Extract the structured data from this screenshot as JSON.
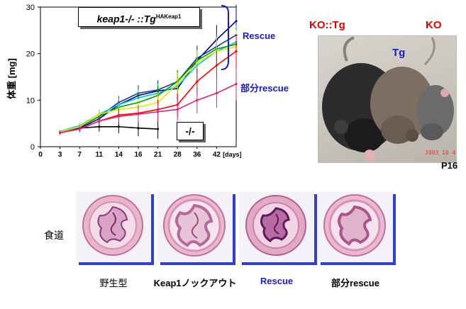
{
  "chart_data": {
    "type": "line",
    "xlabel": "[days]",
    "ylabel": "体重 [mg]",
    "ylim": [
      0,
      30
    ],
    "yticks": [
      0,
      10,
      20,
      30
    ],
    "xtick_labels": [
      "0",
      "3",
      "7",
      "11",
      "14",
      "16",
      "21",
      "28",
      "36",
      "42"
    ],
    "legend_text": "keap1-/- ::Tg",
    "legend_sup": "HAKeap1",
    "ko_label": "-/-",
    "grid": false,
    "series": [
      {
        "color": "#000000",
        "values": [
          3.0,
          4.0,
          4.3,
          4.3,
          4.0,
          3.8
        ]
      },
      {
        "color": "#000080",
        "values": [
          3.0,
          4.0,
          6.0,
          9.0,
          11.0,
          12.0,
          12.5,
          18.5,
          23.0,
          27.0
        ]
      },
      {
        "color": "#1a3c8c",
        "values": [
          3.2,
          4.2,
          6.5,
          9.5,
          11.5,
          12.2,
          14.0,
          19.0,
          21.5,
          24.0
        ]
      },
      {
        "color": "#00bfff",
        "values": [
          3.3,
          4.5,
          7.0,
          9.0,
          10.5,
          11.5,
          13.0,
          17.5,
          20.5,
          22.5
        ]
      },
      {
        "color": "#00a000",
        "values": [
          3.1,
          4.2,
          6.5,
          8.5,
          9.5,
          11.0,
          14.0,
          18.5,
          21.0,
          22.0
        ]
      },
      {
        "color": "#e6e600",
        "values": [
          3.2,
          4.3,
          7.0,
          8.0,
          8.5,
          9.5,
          13.5,
          18.0,
          20.5,
          21.5
        ]
      },
      {
        "color": "#ff0000",
        "values": [
          3.0,
          3.8,
          5.5,
          6.8,
          7.2,
          8.0,
          9.0,
          14.0,
          17.5,
          20.5
        ]
      },
      {
        "color": "#e0207a",
        "values": [
          3.0,
          3.8,
          5.5,
          6.5,
          7.0,
          7.5,
          8.0,
          10.0,
          11.5,
          13.5
        ]
      }
    ]
  },
  "annotations": {
    "rescue": "Rescue",
    "partial_rescue": "部分rescue"
  },
  "photo": {
    "label_kotg": "KO::Tg",
    "label_tg": "Tg",
    "label_ko": "KO",
    "date_stamp": "2003 10 4",
    "age": "P16"
  },
  "histology": {
    "row_label": "食道",
    "captions": [
      "野生型",
      "Keap1ノックアウト",
      "Rescue",
      "部分rescue"
    ]
  },
  "colors": {
    "rescue_blue": "#1a1acc",
    "photo_red": "#e00000",
    "box_shadow_blue": "#2f3fd6"
  }
}
